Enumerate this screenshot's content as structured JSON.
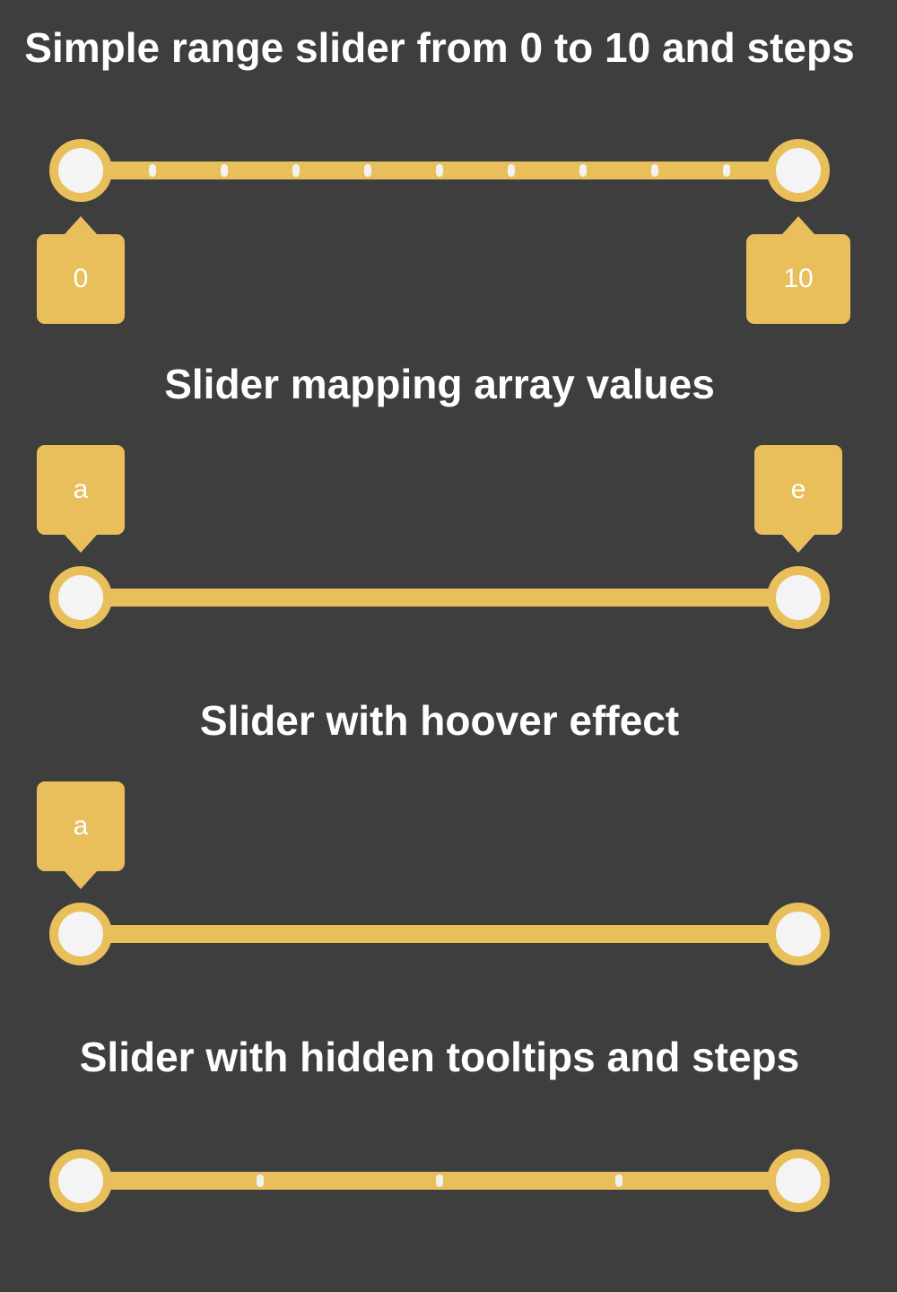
{
  "sections": [
    {
      "title": "Simple range slider from 0 to 10 and steps",
      "min_label": "0",
      "max_label": "10"
    },
    {
      "title": "Slider mapping array values",
      "min_label": "a",
      "max_label": "e"
    },
    {
      "title": "Slider with hoover effect",
      "min_label": "a"
    },
    {
      "title": "Slider with hidden tooltips and steps"
    }
  ],
  "colors": {
    "background": "#3e3e3e",
    "accent": "#e8bf5a",
    "handle_fill": "#f4f4f4",
    "text": "#ffffff"
  }
}
